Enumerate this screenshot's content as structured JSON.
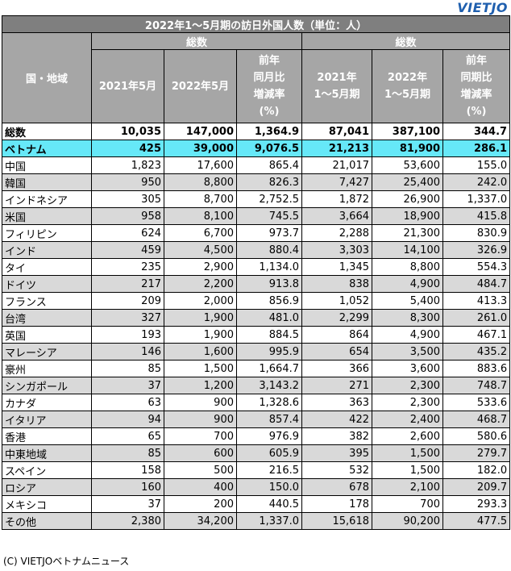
{
  "logo": "VIETJO",
  "title": "2022年1～5月期の訪日外国人数（単位：人）",
  "headers": {
    "region": "国・地域",
    "group1": "総数",
    "group2": "総数",
    "col1": "2021年5月",
    "col2": "2022年5月",
    "col3": "前年\n同月比\n増減率\n(%)",
    "col4": "2021年\n1～5月期",
    "col5": "2022年\n1～5月期",
    "col6": "前年\n同期比\n増減率\n(%)"
  },
  "total": [
    "総数",
    "10,035",
    "147,000",
    "1,364.9",
    "87,041",
    "387,100",
    "344.7"
  ],
  "vietnam": [
    "ベトナム",
    "425",
    "39,000",
    "9,076.5",
    "21,213",
    "81,900",
    "286.1"
  ],
  "rows": [
    [
      "中国",
      "1,823",
      "17,600",
      "865.4",
      "21,017",
      "53,600",
      "155.0"
    ],
    [
      "韓国",
      "950",
      "8,800",
      "826.3",
      "7,427",
      "25,400",
      "242.0"
    ],
    [
      "インドネシア",
      "305",
      "8,700",
      "2,752.5",
      "1,872",
      "26,900",
      "1,337.0"
    ],
    [
      "米国",
      "958",
      "8,100",
      "745.5",
      "3,664",
      "18,900",
      "415.8"
    ],
    [
      "フィリピン",
      "624",
      "6,700",
      "973.7",
      "2,288",
      "21,300",
      "830.9"
    ],
    [
      "インド",
      "459",
      "4,500",
      "880.4",
      "3,303",
      "14,100",
      "326.9"
    ],
    [
      "タイ",
      "235",
      "2,900",
      "1,134.0",
      "1,345",
      "8,800",
      "554.3"
    ],
    [
      "ドイツ",
      "217",
      "2,200",
      "913.8",
      "838",
      "4,900",
      "484.7"
    ],
    [
      "フランス",
      "209",
      "2,000",
      "856.9",
      "1,052",
      "5,400",
      "413.3"
    ],
    [
      "台湾",
      "327",
      "1,900",
      "481.0",
      "2,299",
      "8,300",
      "261.0"
    ],
    [
      "英国",
      "193",
      "1,900",
      "884.5",
      "864",
      "4,900",
      "467.1"
    ],
    [
      "マレーシア",
      "146",
      "1,600",
      "995.9",
      "654",
      "3,500",
      "435.2"
    ],
    [
      "豪州",
      "85",
      "1,500",
      "1,664.7",
      "366",
      "3,600",
      "883.6"
    ],
    [
      "シンガポール",
      "37",
      "1,200",
      "3,143.2",
      "271",
      "2,300",
      "748.7"
    ],
    [
      "カナダ",
      "63",
      "900",
      "1,328.6",
      "363",
      "2,300",
      "533.6"
    ],
    [
      "イタリア",
      "94",
      "900",
      "857.4",
      "422",
      "2,400",
      "468.7"
    ],
    [
      "香港",
      "65",
      "700",
      "976.9",
      "382",
      "2,600",
      "580.6"
    ],
    [
      "中東地域",
      "85",
      "600",
      "605.9",
      "395",
      "1,500",
      "279.7"
    ],
    [
      "スペイン",
      "158",
      "500",
      "216.5",
      "532",
      "1,500",
      "182.0"
    ],
    [
      "ロシア",
      "160",
      "400",
      "150.0",
      "678",
      "2,100",
      "209.7"
    ],
    [
      "メキシコ",
      "37",
      "200",
      "440.5",
      "178",
      "700",
      "293.3"
    ],
    [
      "その他",
      "2,380",
      "34,200",
      "1,337.0",
      "15,618",
      "90,200",
      "477.5"
    ]
  ],
  "footer": "(C) VIETJOベトナムニュース",
  "colors": {
    "title_bg": "#7f7f7f",
    "header_bg": "#a6a6a6",
    "highlight": "#66e8f8",
    "stripe": "#d9d9d9",
    "logo": "#1f5fae"
  }
}
